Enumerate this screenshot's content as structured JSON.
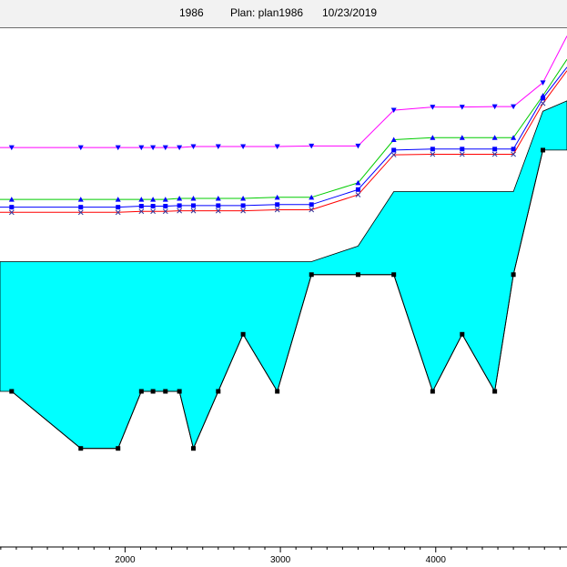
{
  "header": {
    "year": "1986",
    "plan_label": "Plan: plan1986",
    "date": "10/23/2019"
  },
  "colors": {
    "fill": "#00ffff",
    "ground": "#000000",
    "pink": "#ff00ff",
    "green": "#00cc00",
    "blue": "#0000ff",
    "red": "#ff0000"
  },
  "chart_data": {
    "type": "line",
    "title": "",
    "xlabel": "",
    "ylabel": "",
    "xlim": [
      1195,
      4845
    ],
    "ylim": [
      0,
      100
    ],
    "x_ticks": [
      2000,
      3000,
      4000
    ],
    "grid": false,
    "ground": {
      "x": [
        1270,
        1715,
        1955,
        2105,
        2180,
        2260,
        2350,
        2440,
        2600,
        2760,
        2980,
        3200,
        3500,
        3730,
        3980,
        4170,
        4380,
        4500,
        4690
      ],
      "y": [
        30,
        19,
        19,
        30,
        30,
        30,
        30,
        19,
        30,
        41,
        30,
        52.5,
        52.5,
        52.5,
        30,
        41,
        30,
        52.5,
        76.5
      ]
    },
    "fill_surface": {
      "x": [
        1195,
        3200,
        3500,
        3730,
        4500,
        4690,
        4845
      ],
      "y": [
        55,
        55,
        58,
        68.5,
        68.5,
        84,
        86
      ]
    },
    "series": [
      {
        "marker": "triangle-down",
        "x": [
          1195,
          1270,
          1715,
          1955,
          2105,
          2180,
          2260,
          2350,
          2440,
          2600,
          2760,
          2980,
          3200,
          3500,
          3730,
          3980,
          4170,
          4380,
          4500,
          4690,
          4845
        ],
        "y": [
          77,
          77,
          77,
          77,
          77,
          77,
          77,
          77,
          77.2,
          77.2,
          77.2,
          77.2,
          77.3,
          77.3,
          84.2,
          84.8,
          84.8,
          84.9,
          84.9,
          89.5,
          98.5
        ]
      },
      {
        "marker": "triangle",
        "x": [
          1195,
          1270,
          1715,
          1955,
          2105,
          2180,
          2260,
          2350,
          2440,
          2600,
          2760,
          2980,
          3200,
          3500,
          3730,
          3980,
          4170,
          4380,
          4500,
          4690,
          4845
        ],
        "y": [
          67,
          67,
          67,
          67,
          67,
          67,
          67,
          67.2,
          67.2,
          67.2,
          67.2,
          67.4,
          67.4,
          70.2,
          78.5,
          78.9,
          78.9,
          78.9,
          78.9,
          87,
          94
        ]
      },
      {
        "marker": "square",
        "x": [
          1195,
          1270,
          1715,
          1955,
          2105,
          2180,
          2260,
          2350,
          2440,
          2600,
          2760,
          2980,
          3200,
          3500,
          3730,
          3980,
          4170,
          4380,
          4500,
          4690,
          4845
        ],
        "y": [
          65.5,
          65.5,
          65.5,
          65.5,
          65.7,
          65.7,
          65.7,
          65.8,
          65.8,
          65.8,
          65.8,
          66,
          66,
          68.9,
          76.5,
          76.7,
          76.7,
          76.7,
          76.7,
          86.5,
          92.5
        ]
      },
      {
        "marker": "x",
        "x": [
          1195,
          1270,
          1715,
          1955,
          2105,
          2180,
          2260,
          2350,
          2440,
          2600,
          2760,
          2980,
          3200,
          3500,
          3730,
          3980,
          4170,
          4380,
          4500,
          4690,
          4845
        ],
        "y": [
          64.5,
          64.5,
          64.5,
          64.5,
          64.7,
          64.7,
          64.7,
          64.8,
          64.8,
          64.8,
          64.8,
          65,
          65,
          67.9,
          75.6,
          75.7,
          75.7,
          75.7,
          75.7,
          85.5,
          91.8
        ]
      }
    ]
  }
}
